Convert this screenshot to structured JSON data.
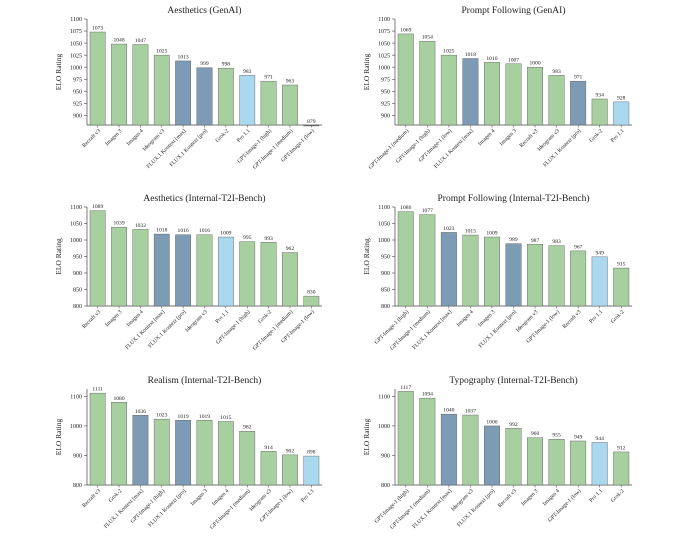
{
  "colors": {
    "green": "#a8cfa0",
    "blue": "#7d9bb4",
    "light_blue": "#a9d8ef",
    "bar_stroke": "#555555",
    "axis": "#444444",
    "text": "#222222"
  },
  "chart_data": [
    {
      "type": "bar",
      "title": "Aesthetics (GenAI)",
      "ylabel": "ELO Rating",
      "ylim": [
        880,
        1100
      ],
      "yticks": [
        900,
        925,
        950,
        975,
        1000,
        1025,
        1050,
        1075,
        1100
      ],
      "categories": [
        "Recraft v3",
        "Imagen 3",
        "Imagen 4",
        "Ideogram v3",
        "FLUX.1 Kontext [max]",
        "FLUX.1 Kontext [pro]",
        "Grok-2",
        "Pro 1.1",
        "GPT-Image-1 (high)",
        "GPT-Image-1 (medium)",
        "GPT-Image-1 (low)"
      ],
      "values": [
        1073,
        1048,
        1047,
        1025,
        1013,
        999,
        998,
        983,
        971,
        963,
        879
      ],
      "colors": [
        "green",
        "green",
        "green",
        "green",
        "blue",
        "blue",
        "green",
        "light_blue",
        "green",
        "green",
        "green"
      ]
    },
    {
      "type": "bar",
      "title": "Prompt Following (GenAI)",
      "ylabel": "ELO Rating",
      "ylim": [
        880,
        1100
      ],
      "yticks": [
        900,
        925,
        950,
        975,
        1000,
        1025,
        1050,
        1075,
        1100
      ],
      "categories": [
        "GPT-Image-1 (medium)",
        "GPT-Image-1 (high)",
        "GPT-Image-1 (low)",
        "FLUX.1 Kontext [max]",
        "Imagen 4",
        "Imagen 3",
        "Recraft v3",
        "Ideogram v3",
        "FLUX.1 Kontext [pro]",
        "Grok-2",
        "Pro 1.1"
      ],
      "values": [
        1069,
        1054,
        1025,
        1018,
        1010,
        1007,
        1000,
        983,
        971,
        934,
        928
      ],
      "colors": [
        "green",
        "green",
        "green",
        "blue",
        "green",
        "green",
        "green",
        "green",
        "blue",
        "green",
        "light_blue"
      ]
    },
    {
      "type": "bar",
      "title": "Aesthetics (Internal-T2I-Bench)",
      "ylabel": "ELO Rating",
      "ylim": [
        800,
        1100
      ],
      "yticks": [
        800,
        850,
        900,
        950,
        1000,
        1050,
        1100
      ],
      "categories": [
        "Recraft v3",
        "Imagen 3",
        "Imagen 4",
        "FLUX.1 Kontext [max]",
        "FLUX.1 Kontext [pro]",
        "Ideogram v3",
        "Pro 1.1",
        "GPT-Image-1 (high)",
        "Grok-2",
        "GPT-Image-1 (medium)",
        "GPT-Image-1 (low)"
      ],
      "values": [
        1089,
        1039,
        1032,
        1018,
        1016,
        1016,
        1009,
        995,
        993,
        962,
        830
      ],
      "colors": [
        "green",
        "green",
        "green",
        "blue",
        "blue",
        "green",
        "light_blue",
        "green",
        "green",
        "green",
        "green"
      ]
    },
    {
      "type": "bar",
      "title": "Prompt Following (Internal-T2I-Bench)",
      "ylabel": "ELO Rating",
      "ylim": [
        800,
        1100
      ],
      "yticks": [
        800,
        850,
        900,
        950,
        1000,
        1050,
        1100
      ],
      "categories": [
        "GPT-Image-1 (high)",
        "GPT-Image-1 (medium)",
        "FLUX.1 Kontext [max]",
        "Imagen 4",
        "Imagen 3",
        "FLUX.1 Kontext [pro]",
        "Ideogram v3",
        "GPT-Image-1 (low)",
        "Recraft v3",
        "Pro 1.1",
        "Grok-2"
      ],
      "values": [
        1086,
        1077,
        1023,
        1015,
        1009,
        989,
        987,
        983,
        967,
        949,
        915
      ],
      "colors": [
        "green",
        "green",
        "blue",
        "green",
        "green",
        "blue",
        "green",
        "green",
        "green",
        "light_blue",
        "green"
      ]
    },
    {
      "type": "bar",
      "title": "Realism (Internal-T2I-Bench)",
      "ylabel": "ELO Rating",
      "ylim": [
        800,
        1125
      ],
      "yticks": [
        800,
        900,
        1000,
        1100
      ],
      "categories": [
        "Recraft v3",
        "Grok-2",
        "FLUX.1 Kontext [max]",
        "GPT-Image-1 (high)",
        "FLUX.1 Kontext [pro]",
        "Imagen 3",
        "Imagen 4",
        "GPT-Image-1 (medium)",
        "Ideogram v3",
        "GPT-Image-1 (low)",
        "Pro 1.1"
      ],
      "values": [
        1111,
        1080,
        1036,
        1023,
        1019,
        1019,
        1015,
        982,
        914,
        902,
        898
      ],
      "colors": [
        "green",
        "green",
        "blue",
        "green",
        "blue",
        "green",
        "green",
        "green",
        "green",
        "green",
        "light_blue"
      ]
    },
    {
      "type": "bar",
      "title": "Typography (Internal-T2I-Bench)",
      "ylabel": "ELO Rating",
      "ylim": [
        800,
        1125
      ],
      "yticks": [
        800,
        900,
        1000,
        1100
      ],
      "categories": [
        "GPT-Image-1 (high)",
        "GPT-Image-1 (medium)",
        "FLUX.1 Kontext [max]",
        "Ideogram v3",
        "FLUX.1 Kontext [pro]",
        "Recraft v3",
        "Imagen 3",
        "Imagen 4",
        "GPT-Image-1 (low)",
        "Pro 1.1",
        "Grok-2"
      ],
      "values": [
        1117,
        1094,
        1040,
        1037,
        1000,
        992,
        960,
        955,
        949,
        944,
        912
      ],
      "colors": [
        "green",
        "green",
        "blue",
        "green",
        "blue",
        "green",
        "green",
        "green",
        "green",
        "light_blue",
        "green"
      ]
    }
  ]
}
